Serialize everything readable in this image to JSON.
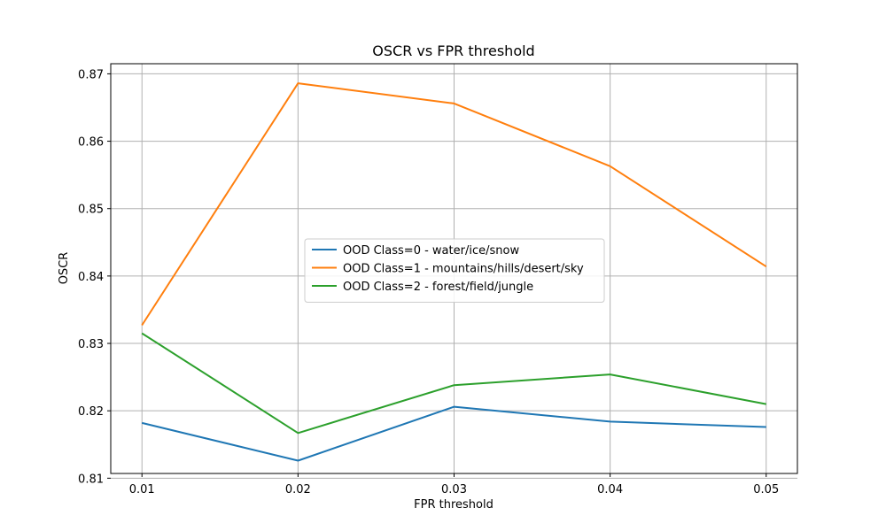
{
  "chart_data": {
    "type": "line",
    "title": "OSCR vs FPR threshold",
    "xlabel": "FPR threshold",
    "ylabel": "OSCR",
    "x": [
      0.01,
      0.02,
      0.03,
      0.04,
      0.05
    ],
    "x_tick_labels": [
      "0.01",
      "0.02",
      "0.03",
      "0.04",
      "0.05"
    ],
    "xlim": [
      0.008,
      0.052
    ],
    "ylim": [
      0.8107,
      0.8715
    ],
    "y_ticks": [
      0.81,
      0.82,
      0.83,
      0.84,
      0.85,
      0.86,
      0.87
    ],
    "y_tick_labels": [
      "0.81",
      "0.82",
      "0.83",
      "0.84",
      "0.85",
      "0.86",
      "0.87"
    ],
    "grid": true,
    "legend_position": "center",
    "series": [
      {
        "name": "OOD Class=0 - water/ice/snow",
        "color": "#1f77b4",
        "values": [
          0.8182,
          0.8126,
          0.8206,
          0.8184,
          0.8176
        ]
      },
      {
        "name": "OOD Class=1 - mountains/hills/desert/sky",
        "color": "#ff7f0e",
        "values": [
          0.8327,
          0.8686,
          0.8656,
          0.8563,
          0.8414
        ]
      },
      {
        "name": "OOD Class=2 - forest/field/jungle",
        "color": "#2ca02c",
        "values": [
          0.8315,
          0.8167,
          0.8238,
          0.8254,
          0.821
        ]
      }
    ]
  }
}
